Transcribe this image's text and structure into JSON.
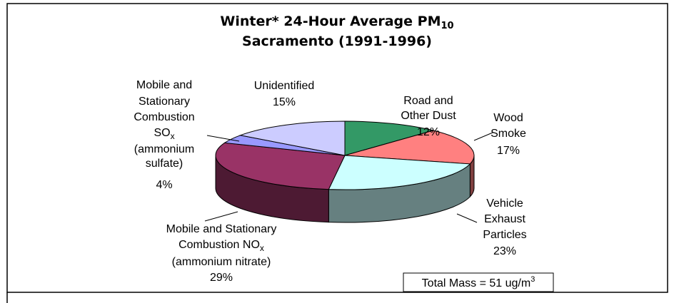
{
  "chart_data": {
    "type": "pie",
    "title": [
      "Winter* 24-Hour Average PM",
      "10"
    ],
    "subtitle": "Sacramento (1991-1996)",
    "categories": [
      [
        "Road and",
        "Other Dust"
      ],
      [
        "Wood",
        "Smoke"
      ],
      [
        "Vehicle",
        "Exhaust",
        "Particles"
      ],
      [
        "Mobile and Stationary",
        [
          "Combustion NO",
          "x"
        ],
        "(ammonium nitrate)"
      ],
      [
        "Mobile and",
        "Stationary",
        "Combustion",
        [
          "SO",
          "x"
        ],
        "(ammonium",
        "sulfate)"
      ],
      [
        "Unidentified"
      ]
    ],
    "values": [
      12,
      17,
      23,
      29,
      4,
      15
    ],
    "value_labels": [
      "12%",
      "17%",
      "23%",
      "29%",
      "4%",
      "15%"
    ],
    "colors": [
      "#339966",
      "#ff8080",
      "#ccffff",
      "#993366",
      "#9999ff",
      "#ccccff"
    ],
    "annotation": [
      "Total Mass = 51 ug/m",
      "3"
    ]
  }
}
